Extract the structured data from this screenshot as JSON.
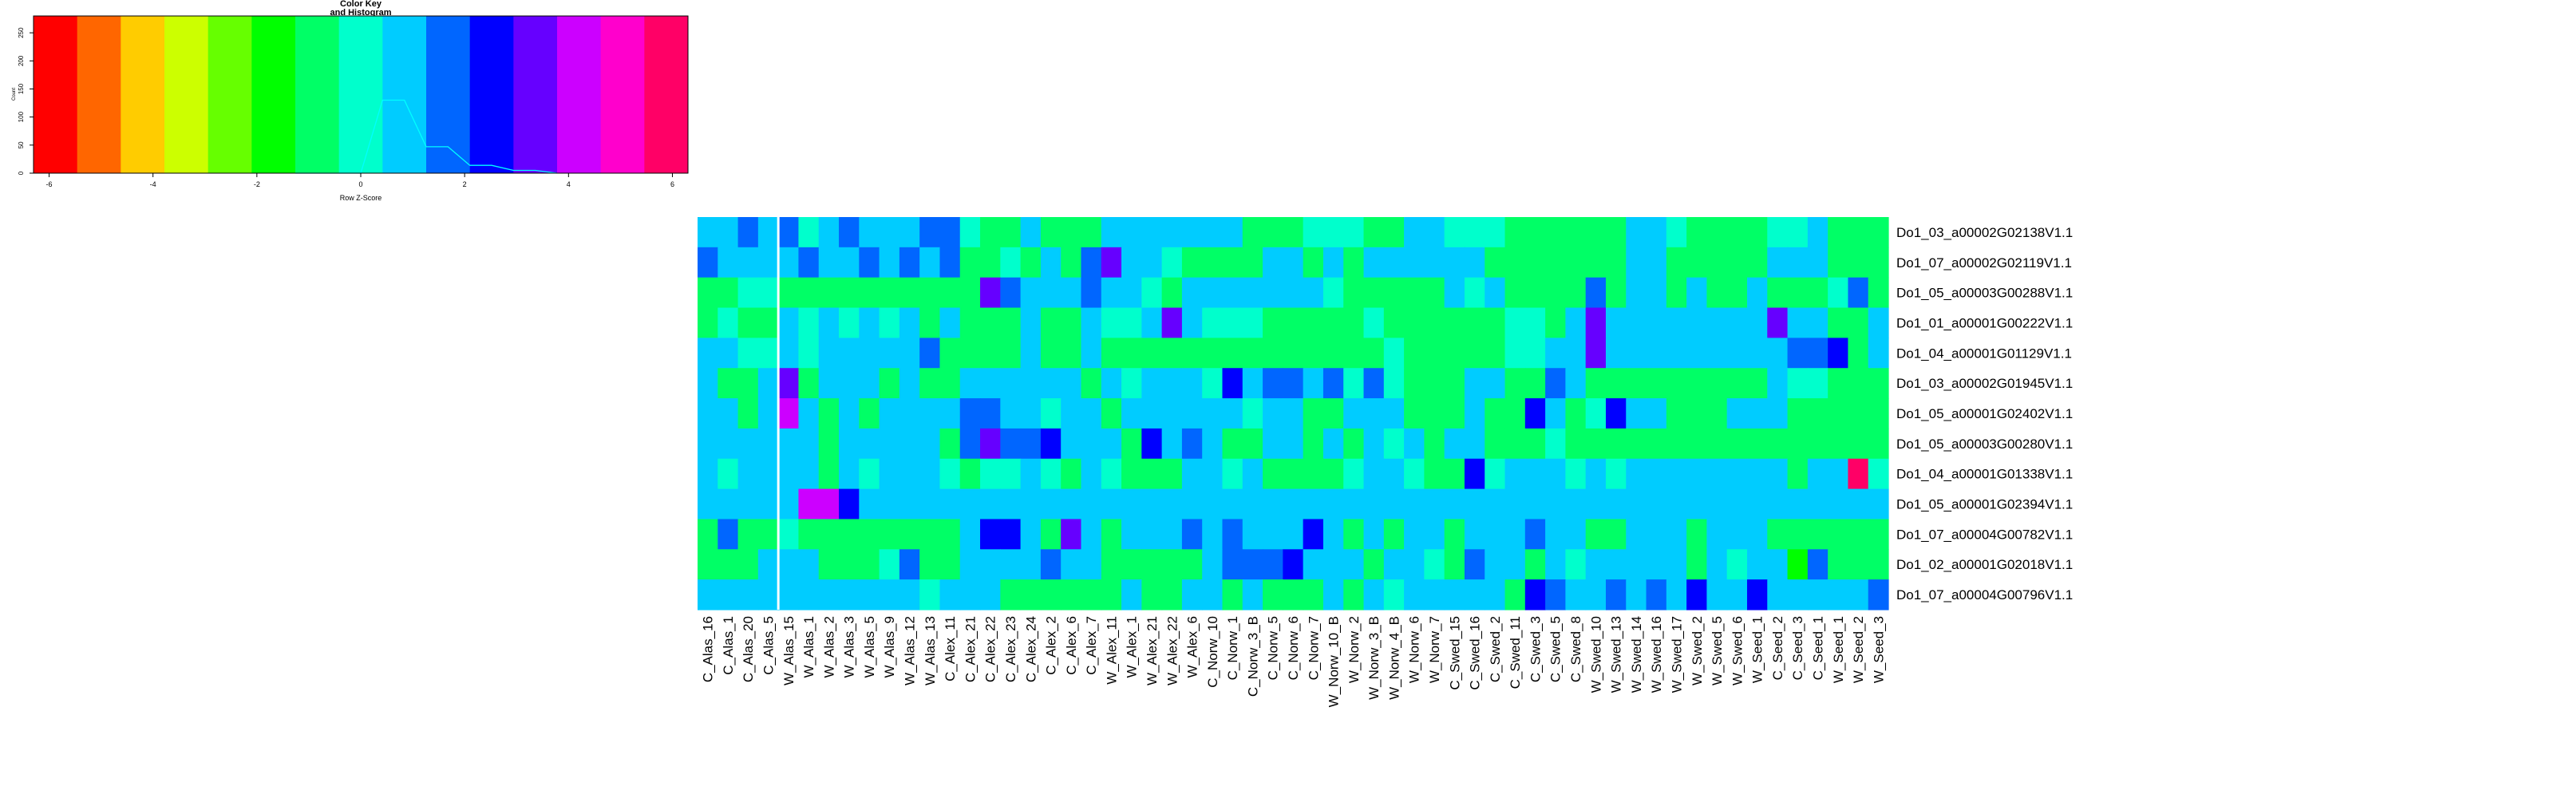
{
  "chart_data": [
    {
      "type": "bar",
      "title_lines": [
        "Color Key",
        "and Histogram"
      ],
      "xlabel": "Row Z-Score",
      "ylabel": "Count",
      "xlim": [
        -6.3,
        6.3
      ],
      "ylim": [
        0,
        280
      ],
      "x_ticks": [
        "-6",
        "-4",
        "-2",
        "0",
        "2",
        "4",
        "6"
      ],
      "y_ticks": [
        "0",
        "50",
        "100",
        "150",
        "200",
        "250"
      ],
      "color_breaks": [
        -6.3,
        -5.46,
        -4.62,
        -3.78,
        -2.94,
        -2.1,
        -1.26,
        -0.42,
        0.42,
        1.26,
        2.1,
        2.94,
        3.78,
        4.62,
        5.46,
        6.3
      ],
      "color_key": [
        "#FF0000",
        "#FF6600",
        "#FFCC00",
        "#CCFF00",
        "#66FF00",
        "#00FF00",
        "#00FF66",
        "#00FFCC",
        "#00CCFF",
        "#0066FF",
        "#0000FF",
        "#6600FF",
        "#CC00FF",
        "#FF00CC",
        "#FF0066"
      ],
      "histogram": [
        {
          "x": -1.26,
          "count": 0
        },
        {
          "x": -0.84,
          "count": 0
        },
        {
          "x": -0.42,
          "count": 0
        },
        {
          "x": 0.0,
          "count": 0
        },
        {
          "x": 0.42,
          "count": 130
        },
        {
          "x": 0.84,
          "count": 130
        },
        {
          "x": 1.26,
          "count": 47
        },
        {
          "x": 1.68,
          "count": 47
        },
        {
          "x": 2.1,
          "count": 14
        },
        {
          "x": 2.52,
          "count": 14
        },
        {
          "x": 2.94,
          "count": 5
        },
        {
          "x": 3.36,
          "count": 5
        },
        {
          "x": 3.78,
          "count": 0
        }
      ]
    },
    {
      "type": "heatmap",
      "columns": [
        "C_Alas_16",
        "C_Alas_1",
        "C_Alas_20",
        "C_Alas_5",
        "W_Alas_15",
        "W_Alas_1",
        "W_Alas_2",
        "W_Alas_3",
        "W_Alas_5",
        "W_Alas_9",
        "W_Alas_12",
        "W_Alas_13",
        "C_Alex_11",
        "C_Alex_21",
        "C_Alex_22",
        "C_Alex_23",
        "C_Alex_24",
        "C_Alex_2",
        "C_Alex_6",
        "C_Alex_7",
        "W_Alex_11",
        "W_Alex_1",
        "W_Alex_21",
        "W_Alex_22",
        "W_Alex_6",
        "C_Norw_10",
        "C_Norw_1",
        "C_Norw_3_B",
        "C_Norw_5",
        "C_Norw_6",
        "C_Norw_7",
        "W_Norw_10_B",
        "W_Norw_2",
        "W_Norw_3_B",
        "W_Norw_4_B",
        "W_Norw_6",
        "W_Norw_7",
        "C_Swed_15",
        "C_Swed_16",
        "C_Swed_2",
        "C_Swed_11",
        "C_Swed_3",
        "C_Swed_5",
        "C_Swed_8",
        "W_Swed_10",
        "W_Swed_13",
        "W_Swed_14",
        "W_Swed_16",
        "W_Swed_17",
        "W_Swed_2",
        "W_Swed_5",
        "W_Swed_6",
        "W_Seed_1",
        "C_Seed_2",
        "C_Seed_3",
        "C_Seed_1",
        "W_Seed_1",
        "W_Seed_2",
        "W_Seed_3"
      ],
      "rows": [
        "Do1_03_a00002G02138V1.1",
        "Do1_07_a00002G02119V1.1",
        "Do1_05_a00003G00288V1.1",
        "Do1_01_a00001G00222V1.1",
        "Do1_04_a00001G01129V1.1",
        "Do1_03_a00002G01945V1.1",
        "Do1_05_a00001G02402V1.1",
        "Do1_05_a00003G00280V1.1",
        "Do1_04_a00001G01338V1.1",
        "Do1_05_a00001G02394V1.1",
        "Do1_07_a00004G00782V1.1",
        "Do1_02_a00001G02018V1.1",
        "Do1_07_a00004G00796V1.1"
      ],
      "column_separator_after": "C_Alas_5",
      "values": [
        [
          0.5,
          1,
          1.5,
          0.5,
          1.5,
          0,
          1,
          1.5,
          1,
          1,
          1,
          2,
          1.5,
          0,
          -1,
          -1,
          0.5,
          -1,
          -0.5,
          -0.5,
          1,
          1,
          0.5,
          1,
          1,
          1,
          1,
          -0.5,
          -0.5,
          -0.5,
          0,
          0,
          0,
          -0.5,
          -0.5,
          0.5,
          0.5,
          0,
          0,
          0,
          -0.5,
          -0.5,
          -1,
          -0.5,
          -1,
          -0.5,
          1,
          1,
          0,
          -0.5,
          -0.5,
          -0.5,
          -0.5,
          0,
          0,
          0.5,
          -1,
          -0.5,
          -0.5
        ],
        [
          1.5,
          1,
          1,
          0.5,
          0.5,
          1.5,
          1,
          1,
          1.5,
          1,
          1.5,
          1,
          1.5,
          -0.5,
          -0.5,
          0,
          -0.5,
          0.5,
          -0.5,
          1.5,
          3,
          1,
          0.5,
          0,
          -1,
          -0.5,
          -0.5,
          -0.5,
          0.5,
          0.5,
          -0.5,
          1,
          -0.5,
          0.5,
          0.5,
          0.5,
          1,
          1,
          0.5,
          -0.5,
          -0.5,
          -1,
          -0.5,
          -0.5,
          -1,
          -0.5,
          0.5,
          0.5,
          -0.5,
          -0.5,
          -0.5,
          -0.5,
          -0.5,
          0.5,
          0.5,
          0.5,
          -0.5,
          -0.5,
          -0.5
        ],
        [
          -0.5,
          -0.5,
          0,
          0,
          -0.5,
          -0.5,
          -0.5,
          -0.5,
          -0.5,
          -0.5,
          -0.5,
          -0.5,
          -1,
          -0.5,
          3,
          1.5,
          1,
          1,
          0.5,
          1.5,
          1,
          0.5,
          0,
          -0.5,
          0.5,
          0.5,
          1,
          1,
          1,
          0.5,
          0.5,
          0,
          -0.5,
          -0.5,
          -0.5,
          -0.5,
          -0.5,
          1,
          0,
          0.5,
          -1,
          -0.5,
          -0.5,
          -0.5,
          1.5,
          -0.5,
          0.5,
          0.5,
          -0.5,
          0.5,
          -1,
          -0.5,
          0.5,
          -0.5,
          -0.5,
          -0.5,
          0,
          2,
          -0.5
        ],
        [
          -0.5,
          0,
          -0.5,
          -0.5,
          0.5,
          0,
          0.5,
          0,
          1,
          0,
          0.5,
          -0.5,
          0.5,
          -0.5,
          -0.5,
          -0.5,
          0.5,
          -0.5,
          -0.5,
          0.5,
          0,
          0,
          0.5,
          3,
          0.5,
          0,
          0,
          0,
          -0.5,
          -0.5,
          -0.5,
          -0.5,
          -0.5,
          0,
          -0.5,
          -0.5,
          -0.5,
          -0.5,
          -0.5,
          -0.5,
          0,
          0,
          -0.5,
          0.5,
          3,
          0.5,
          1,
          0.5,
          0.5,
          0.5,
          1,
          0.5,
          0.5,
          3.5,
          0.5,
          0.5,
          -0.5,
          -0.5,
          0.5
        ],
        [
          1,
          0.5,
          0,
          0,
          1,
          0,
          1,
          1,
          1,
          1,
          1,
          1.5,
          -0.5,
          -0.5,
          -0.5,
          -0.5,
          0.5,
          -0.5,
          -0.5,
          0.5,
          -0.5,
          -0.5,
          -0.5,
          -0.5,
          -0.5,
          -0.5,
          -0.5,
          -0.5,
          -0.5,
          -0.5,
          -0.5,
          -0.5,
          -0.5,
          -0.5,
          0,
          -0.5,
          -0.5,
          -0.5,
          -0.5,
          -0.5,
          0,
          0,
          0.5,
          1,
          3,
          0.5,
          1,
          0.5,
          1,
          0.5,
          1,
          0.5,
          0.5,
          1,
          2,
          1.5,
          2.5,
          -0.5,
          1
        ],
        [
          0.5,
          -0.5,
          -0.5,
          0.5,
          3,
          -1,
          0.5,
          0.5,
          0.5,
          -0.5,
          0.5,
          -0.5,
          -0.5,
          0.5,
          0.5,
          1,
          1,
          0.5,
          0.5,
          -0.5,
          0.5,
          0,
          0.5,
          1,
          0.5,
          0,
          2.5,
          1,
          1.5,
          1.5,
          0.5,
          1.5,
          0,
          1.5,
          0,
          -0.5,
          -0.5,
          -0.5,
          0.5,
          0.5,
          -1,
          -0.5,
          1.5,
          0.5,
          -1,
          -1,
          -0.5,
          -0.5,
          -1,
          -1,
          -0.5,
          -0.5,
          -0.5,
          0.5,
          0,
          0,
          -1,
          -1,
          -1
        ],
        [
          1,
          0.5,
          -0.5,
          0.5,
          4,
          0.5,
          -0.5,
          0.5,
          -0.5,
          0.5,
          0.5,
          0.5,
          1,
          1.5,
          2,
          0.5,
          1,
          0,
          0.5,
          1,
          -0.5,
          0.5,
          0.5,
          0.5,
          1,
          0.5,
          1,
          0,
          0.5,
          0.5,
          -0.5,
          -0.5,
          0.5,
          0.5,
          1,
          -0.5,
          -0.5,
          -0.5,
          0.5,
          -0.5,
          -0.5,
          2.5,
          0.5,
          -0.5,
          0,
          2.5,
          0.5,
          0.5,
          -0.5,
          -0.5,
          -0.5,
          0.5,
          1,
          0.5,
          -0.5,
          -0.5,
          -0.5,
          -0.5,
          -0.5
        ],
        [
          1,
          1,
          1,
          1,
          0.5,
          0.5,
          -1,
          0.5,
          0.5,
          0.5,
          0.5,
          0.5,
          -0.5,
          1.5,
          3,
          1.5,
          1.5,
          2.5,
          1,
          1,
          0.5,
          -0.5,
          2.5,
          0.5,
          1.5,
          0.5,
          -0.5,
          -0.5,
          0.5,
          0.5,
          -0.5,
          0.5,
          -0.5,
          1,
          0,
          0.5,
          -0.5,
          1,
          0.5,
          -0.5,
          -0.5,
          -0.5,
          0,
          -0.5,
          -0.5,
          -0.5,
          -0.5,
          -0.5,
          -0.5,
          -0.5,
          -0.5,
          -0.5,
          -0.5,
          -0.5,
          -0.5,
          -0.5,
          -0.5,
          -0.5,
          -0.5
        ],
        [
          0.5,
          0,
          0.5,
          0.5,
          0.5,
          0.5,
          -0.5,
          0.5,
          0,
          0.5,
          1,
          0.5,
          0,
          -0.5,
          0,
          0,
          0.5,
          0,
          -0.5,
          0.5,
          0,
          -0.5,
          -0.5,
          -0.5,
          0.5,
          0.5,
          0,
          0.5,
          -0.5,
          -0.5,
          -0.5,
          -0.5,
          0,
          0.5,
          0.5,
          0,
          -0.5,
          -0.5,
          2.5,
          0,
          0.5,
          0.5,
          0.5,
          0,
          0.5,
          0,
          0.5,
          0.5,
          0.5,
          1,
          0.5,
          0.5,
          0.5,
          0.5,
          -0.5,
          0.5,
          0.5,
          5.5,
          0
        ],
        [
          0.5,
          1,
          1,
          1,
          0.5,
          4,
          4,
          2.5,
          0.5,
          0.5,
          0.5,
          1,
          0.5,
          0.5,
          0.5,
          0.5,
          0.5,
          0.5,
          0.5,
          0.5,
          0.5,
          0.5,
          0.5,
          0.5,
          0.5,
          0.5,
          0.5,
          0.5,
          0.5,
          0.5,
          0.5,
          0.5,
          0.5,
          0.5,
          0.5,
          0.5,
          0.5,
          0.5,
          0.5,
          0.5,
          0.5,
          0.5,
          0.5,
          0.5,
          0.5,
          0.5,
          0.5,
          0.5,
          0.5,
          0.5,
          0.5,
          0.5,
          0.5,
          0.5,
          0.5,
          0.5,
          0.5,
          0.5,
          0.5
        ],
        [
          -0.5,
          1.5,
          -0.5,
          -0.5,
          0,
          -0.5,
          -0.5,
          -0.5,
          -0.5,
          -0.5,
          -0.5,
          -0.5,
          -0.5,
          1,
          2.5,
          2.5,
          0.5,
          -0.5,
          3,
          0.5,
          -0.5,
          1,
          0.5,
          0.5,
          1.5,
          0.5,
          2,
          0.5,
          1,
          1,
          2.5,
          0.5,
          -0.5,
          0.5,
          -0.5,
          0.5,
          0.5,
          -0.5,
          0.5,
          1,
          0.5,
          1.5,
          0.5,
          1,
          -0.5,
          -0.5,
          0.5,
          0.5,
          0.5,
          -0.5,
          0.5,
          0.5,
          0.5,
          -0.5,
          -0.5,
          -0.5,
          -0.5,
          -0.5,
          -0.5
        ],
        [
          -0.5,
          -0.5,
          -0.5,
          0.5,
          0.5,
          0.5,
          -1,
          -0.5,
          -0.5,
          0,
          1.5,
          -0.5,
          -0.5,
          0.5,
          0.5,
          0.5,
          0.5,
          1.5,
          0.5,
          0.5,
          -0.5,
          -0.5,
          -1,
          -0.5,
          -1,
          0.5,
          1.5,
          1.5,
          1.5,
          2.5,
          1,
          1,
          0.5,
          -0.5,
          0.5,
          0.5,
          0,
          -0.5,
          1.5,
          0.5,
          0.5,
          -0.5,
          0.5,
          0,
          0.5,
          0.5,
          0.5,
          0.5,
          1,
          -0.5,
          0.5,
          0,
          0.5,
          0.5,
          -1.5,
          1.5,
          -0.5,
          -1,
          -0.5
        ],
        [
          0.5,
          0.5,
          0.5,
          0.5,
          1,
          0.5,
          0.5,
          0.5,
          0.5,
          1,
          1,
          0,
          0.5,
          0.5,
          0.5,
          -0.5,
          -0.5,
          -0.5,
          -1,
          -1,
          -0.5,
          1,
          -0.5,
          -1,
          0.5,
          0.5,
          -0.5,
          0.5,
          -0.5,
          -0.5,
          -0.5,
          0.5,
          -0.5,
          0.5,
          0,
          0.5,
          1,
          1,
          0.5,
          0.5,
          -0.5,
          2.5,
          1.5,
          1,
          1,
          2,
          1,
          1.5,
          1,
          2.5,
          1,
          1,
          2.5,
          1,
          1,
          0.5,
          1,
          1,
          1.5
        ]
      ]
    }
  ]
}
